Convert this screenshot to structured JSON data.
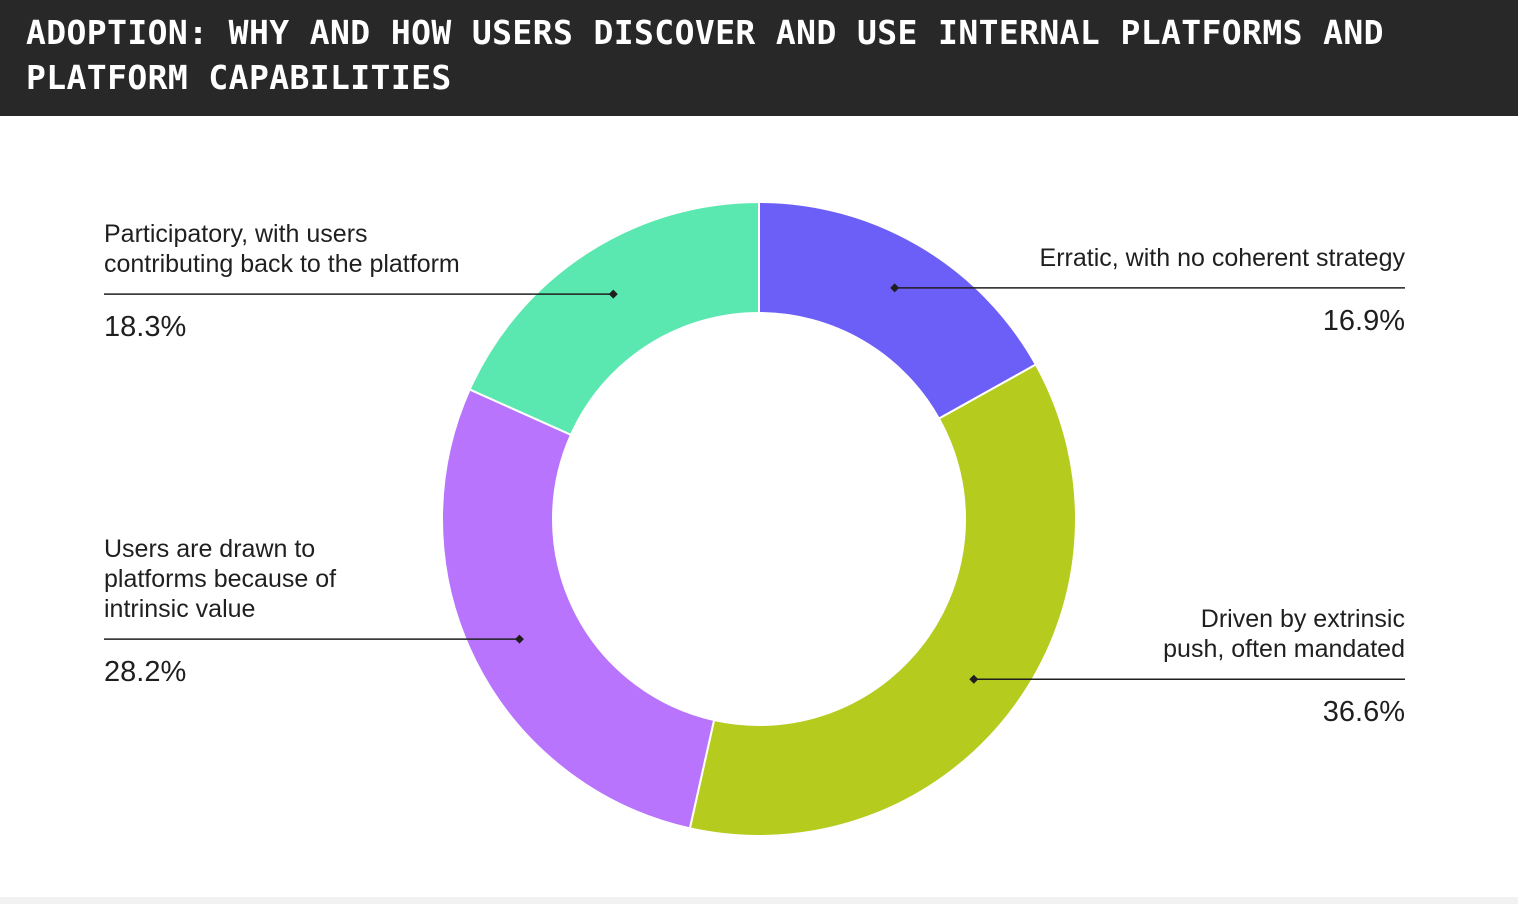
{
  "header": {
    "title": "ADOPTION: WHY AND HOW USERS DISCOVER AND USE INTERNAL PLATFORMS AND PLATFORM CAPABILITIES"
  },
  "chart_data": {
    "type": "pie",
    "variant": "donut",
    "title": "ADOPTION: WHY AND HOW USERS DISCOVER AND USE INTERNAL PLATFORMS AND PLATFORM CAPABILITIES",
    "unit": "%",
    "slices": [
      {
        "label": "Erratic, with no coherent strategy",
        "label_lines": [
          "Erratic, with no coherent strategy"
        ],
        "value": 16.9,
        "value_label": "16.9%",
        "color": "#6b5ff7",
        "label_side": "right"
      },
      {
        "label": "Driven by extrinsic push, often mandated",
        "label_lines": [
          "Driven by extrinsic",
          "push, often mandated"
        ],
        "value": 36.6,
        "value_label": "36.6%",
        "color": "#b5cb1e",
        "label_side": "right"
      },
      {
        "label": "Users are drawn to platforms because of intrinsic value",
        "label_lines": [
          "Users are drawn to",
          "platforms because of",
          "intrinsic value"
        ],
        "value": 28.2,
        "value_label": "28.2%",
        "color": "#b874fc",
        "label_side": "left"
      },
      {
        "label": "Participatory, with users contributing back to the platform",
        "label_lines": [
          "Participatory, with users",
          "contributing back to the platform"
        ],
        "value": 18.3,
        "value_label": "18.3%",
        "color": "#5ae8b0",
        "label_side": "left"
      }
    ]
  }
}
